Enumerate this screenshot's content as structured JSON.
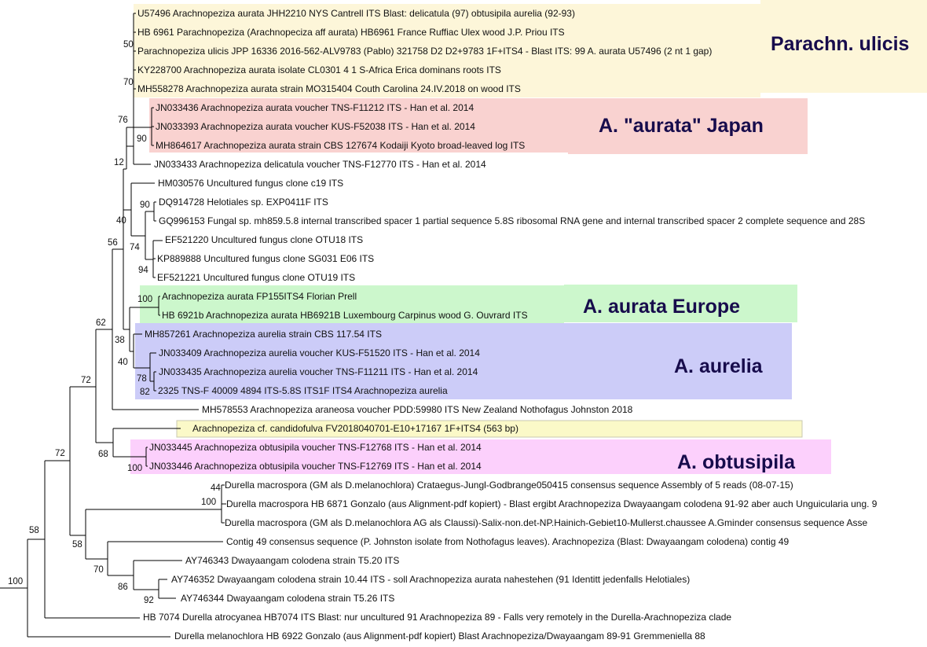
{
  "leaves": [
    "U57496 Arachnopeziza aurata JHH2210 NYS Cantrell ITS Blast: delicatula (97) obtusipila aurelia (92-93)",
    "HB 6961 Parachnopeziza (Arachnopeciza aff aurata) HB6961 France Ruffiac Ulex wood J.P. Priou ITS",
    "Parachnopeziza ulicis JPP 16336 2016-562-ALV9783 (Pablo) 321758 D2 D2+9783 1F+ITS4 - Blast ITS: 99 A. aurata U57496 (2 nt 1 gap)",
    "KY228700 Arachnopeziza aurata isolate CL0301 4 1 S-Africa Erica dominans roots ITS",
    "MH558278 Arachnopeziza aurata strain MO315404 Couth Carolina 24.IV.2018 on wood ITS",
    "JN033436 Arachnopeziza aurata voucher TNS-F11212 ITS - Han et al. 2014",
    "JN033393 Arachnopeziza aurata voucher KUS-F52038 ITS - Han et al. 2014",
    "MH864617 Arachnopeziza aurata strain CBS 127674 Kodaiji Kyoto broad-leaved log ITS",
    "JN033433 Arachnopeziza delicatula voucher TNS-F12770 ITS - Han et al. 2014",
    "HM030576 Uncultured fungus clone c19 ITS",
    "DQ914728 Helotiales sp. EXP0411F ITS",
    "GQ996153 Fungal sp. mh859.5.8 internal transcribed spacer 1 partial sequence 5.8S ribosomal RNA gene and internal transcribed spacer 2 complete sequence and 28S",
    "EF521220 Uncultured fungus clone OTU18 ITS",
    "KP889888 Uncultured fungus clone SG031 E06 ITS",
    "EF521221 Uncultured fungus clone OTU19 ITS",
    "Arachnopeziza aurata FP155ITS4 Florian Prell",
    "HB 6921b Arachnopeziza aurata HB6921B Luxembourg Carpinus wood G. Ouvrard ITS",
    "MH857261 Arachnopeziza aurelia strain CBS 117.54 ITS",
    "JN033409 Arachnopeziza aurelia voucher KUS-F51520 ITS - Han et al. 2014",
    "JN033435 Arachnopeziza aurelia voucher TNS-F11211 ITS - Han et al. 2014",
    "2325 TNS-F 40009 4894 ITS-5.8S ITS1F ITS4 Arachnopeziza aurelia",
    "MH578553 Arachnopeziza araneosa voucher PDD:59980 ITS New Zealand Nothofagus Johnston 2018",
    "Arachnopeziza cf. candidofulva FV2018040701-E10+17167 1F+ITS4 (563 bp)",
    "JN033445 Arachnopeziza obtusipila voucher TNS-F12768 ITS - Han et al. 2014",
    "JN033446 Arachnopeziza obtusipila voucher TNS-F12769 ITS - Han et al. 2014",
    "Durella macrospora (GM als D.melanochlora) Crataegus-Jungl-Godbrange050415 consensus sequence Assembly of 5 reads (08-07-15)",
    "Durella macrospora HB 6871 Gonzalo (aus Alignment-pdf kopiert) - Blast ergibt Arachnopeziza Dwayaangam colodena 91-92 aber auch Unguicularia ung. 9",
    "Durella macrospora (GM als D.melanochlora AG als Claussi)-Salix-non.det-NP.Hainich-Gebiet10-Mullerst.chaussee A.Gminder consensus sequence Asse",
    "Contig 49 consensus sequence (P. Johnston isolate from Nothofagus leaves). Arachnopeziza (Blast: Dwayaangam colodena) contig 49",
    "AY746343 Dwayaangam colodena strain T5.20 ITS",
    "AY746352 Dwayaangam colodena strain 10.44 ITS - soll Arachnopeziza aurata nahestehen (91 Identitt jedenfalls Helotiales)",
    "AY746344 Dwayaangam colodena strain T5.26 ITS",
    "HB 7074 Durella atrocyanea HB7074 ITS Blast: nur uncultured 91 Arachnopeziza 89 - Falls very remotely in the Durella-Arachnopeziza clade",
    "Durella melanochlora HB 6922 Gonzalo (aus Alignment-pdf kopiert) Blast Arachnopeziza/Dwayaangam 89-91 Gremmeniella 88"
  ],
  "bootstrap": [
    "50",
    "70",
    "76",
    "90",
    "12",
    "90",
    "40",
    "56",
    "74",
    "94",
    "100",
    "62",
    "38",
    "40",
    "78",
    "82",
    "72",
    "72",
    "68",
    "100",
    "44",
    "100",
    "58",
    "70",
    "86",
    "92",
    "58",
    "100"
  ],
  "clades": [
    {
      "label": "Parachn. ulicis",
      "color": "#fdf6d9"
    },
    {
      "label": "A. \"aurata\" Japan",
      "color": "#f9d2d0"
    },
    {
      "label": "A. aurata Europe",
      "color": "#ccf7cc"
    },
    {
      "label": "A. aurelia",
      "color": "#ccccf8"
    },
    {
      "label": "",
      "color": "#fbf9c8"
    },
    {
      "label": "A. obtusipila",
      "color": "#fcd0fc"
    }
  ]
}
